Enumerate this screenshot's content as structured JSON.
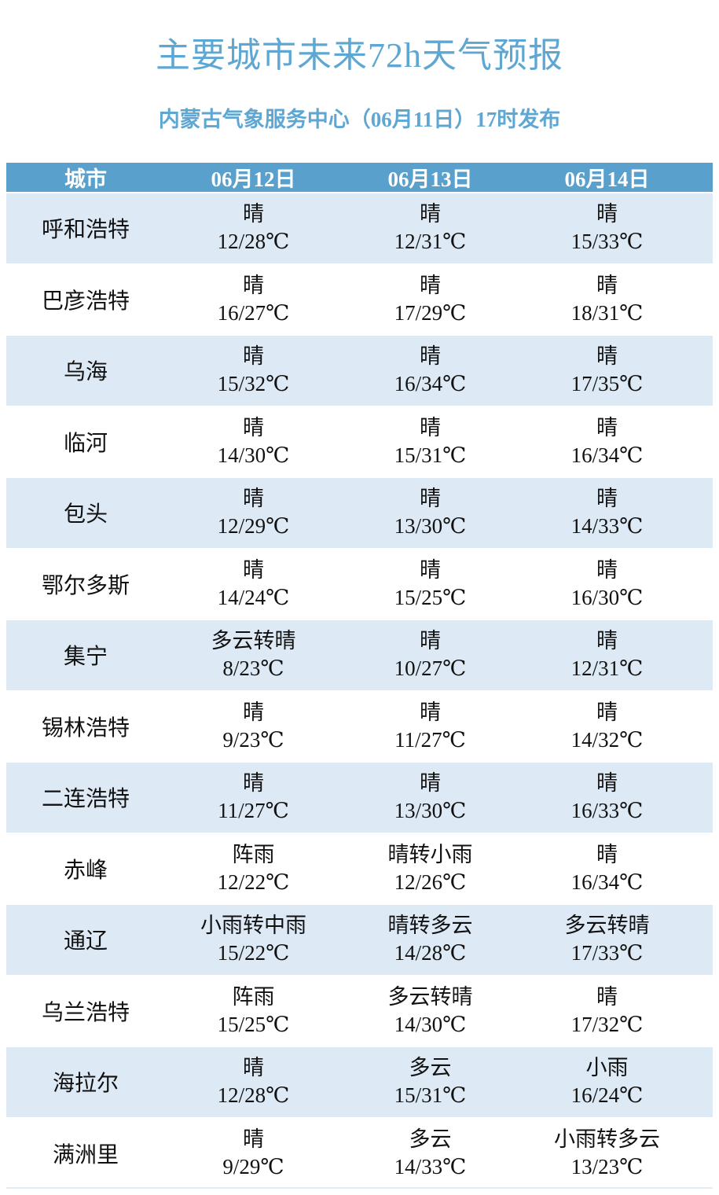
{
  "title": "主要城市未来72h天气预报",
  "subtitle": "内蒙古气象服务中心（06月11日）17时发布",
  "colors": {
    "accent": "#5fa7d3",
    "header_bg": "#5aa0cc",
    "row_alt_bg": "#dde9f5"
  },
  "table": {
    "headers": [
      "城市",
      "06月12日",
      "06月13日",
      "06月14日"
    ],
    "rows": [
      {
        "city": "呼和浩特",
        "days": [
          {
            "w": "晴",
            "t": "12/28℃"
          },
          {
            "w": "晴",
            "t": "12/31℃"
          },
          {
            "w": "晴",
            "t": "15/33℃"
          }
        ]
      },
      {
        "city": "巴彦浩特",
        "days": [
          {
            "w": "晴",
            "t": "16/27℃"
          },
          {
            "w": "晴",
            "t": "17/29℃"
          },
          {
            "w": "晴",
            "t": "18/31℃"
          }
        ]
      },
      {
        "city": "乌海",
        "days": [
          {
            "w": "晴",
            "t": "15/32℃"
          },
          {
            "w": "晴",
            "t": "16/34℃"
          },
          {
            "w": "晴",
            "t": "17/35℃"
          }
        ]
      },
      {
        "city": "临河",
        "days": [
          {
            "w": "晴",
            "t": "14/30℃"
          },
          {
            "w": "晴",
            "t": "15/31℃"
          },
          {
            "w": "晴",
            "t": "16/34℃"
          }
        ]
      },
      {
        "city": "包头",
        "days": [
          {
            "w": "晴",
            "t": "12/29℃"
          },
          {
            "w": "晴",
            "t": "13/30℃"
          },
          {
            "w": "晴",
            "t": "14/33℃"
          }
        ]
      },
      {
        "city": "鄂尔多斯",
        "days": [
          {
            "w": "晴",
            "t": "14/24℃"
          },
          {
            "w": "晴",
            "t": "15/25℃"
          },
          {
            "w": "晴",
            "t": "16/30℃"
          }
        ]
      },
      {
        "city": "集宁",
        "days": [
          {
            "w": "多云转晴",
            "t": "8/23℃"
          },
          {
            "w": "晴",
            "t": "10/27℃"
          },
          {
            "w": "晴",
            "t": "12/31℃"
          }
        ]
      },
      {
        "city": "锡林浩特",
        "days": [
          {
            "w": "晴",
            "t": "9/23℃"
          },
          {
            "w": "晴",
            "t": "11/27℃"
          },
          {
            "w": "晴",
            "t": "14/32℃"
          }
        ]
      },
      {
        "city": "二连浩特",
        "days": [
          {
            "w": "晴",
            "t": "11/27℃"
          },
          {
            "w": "晴",
            "t": "13/30℃"
          },
          {
            "w": "晴",
            "t": "16/33℃"
          }
        ]
      },
      {
        "city": "赤峰",
        "days": [
          {
            "w": "阵雨",
            "t": "12/22℃"
          },
          {
            "w": "晴转小雨",
            "t": "12/26℃"
          },
          {
            "w": "晴",
            "t": "16/34℃"
          }
        ]
      },
      {
        "city": "通辽",
        "days": [
          {
            "w": "小雨转中雨",
            "t": "15/22℃"
          },
          {
            "w": "晴转多云",
            "t": "14/28℃"
          },
          {
            "w": "多云转晴",
            "t": "17/33℃"
          }
        ]
      },
      {
        "city": "乌兰浩特",
        "days": [
          {
            "w": "阵雨",
            "t": "15/25℃"
          },
          {
            "w": "多云转晴",
            "t": "14/30℃"
          },
          {
            "w": "晴",
            "t": "17/32℃"
          }
        ]
      },
      {
        "city": "海拉尔",
        "days": [
          {
            "w": "晴",
            "t": "12/28℃"
          },
          {
            "w": "多云",
            "t": "15/31℃"
          },
          {
            "w": "小雨",
            "t": "16/24℃"
          }
        ]
      },
      {
        "city": "满洲里",
        "days": [
          {
            "w": "晴",
            "t": "9/29℃"
          },
          {
            "w": "多云",
            "t": "14/33℃"
          },
          {
            "w": "小雨转多云",
            "t": "13/23℃"
          }
        ]
      }
    ]
  }
}
